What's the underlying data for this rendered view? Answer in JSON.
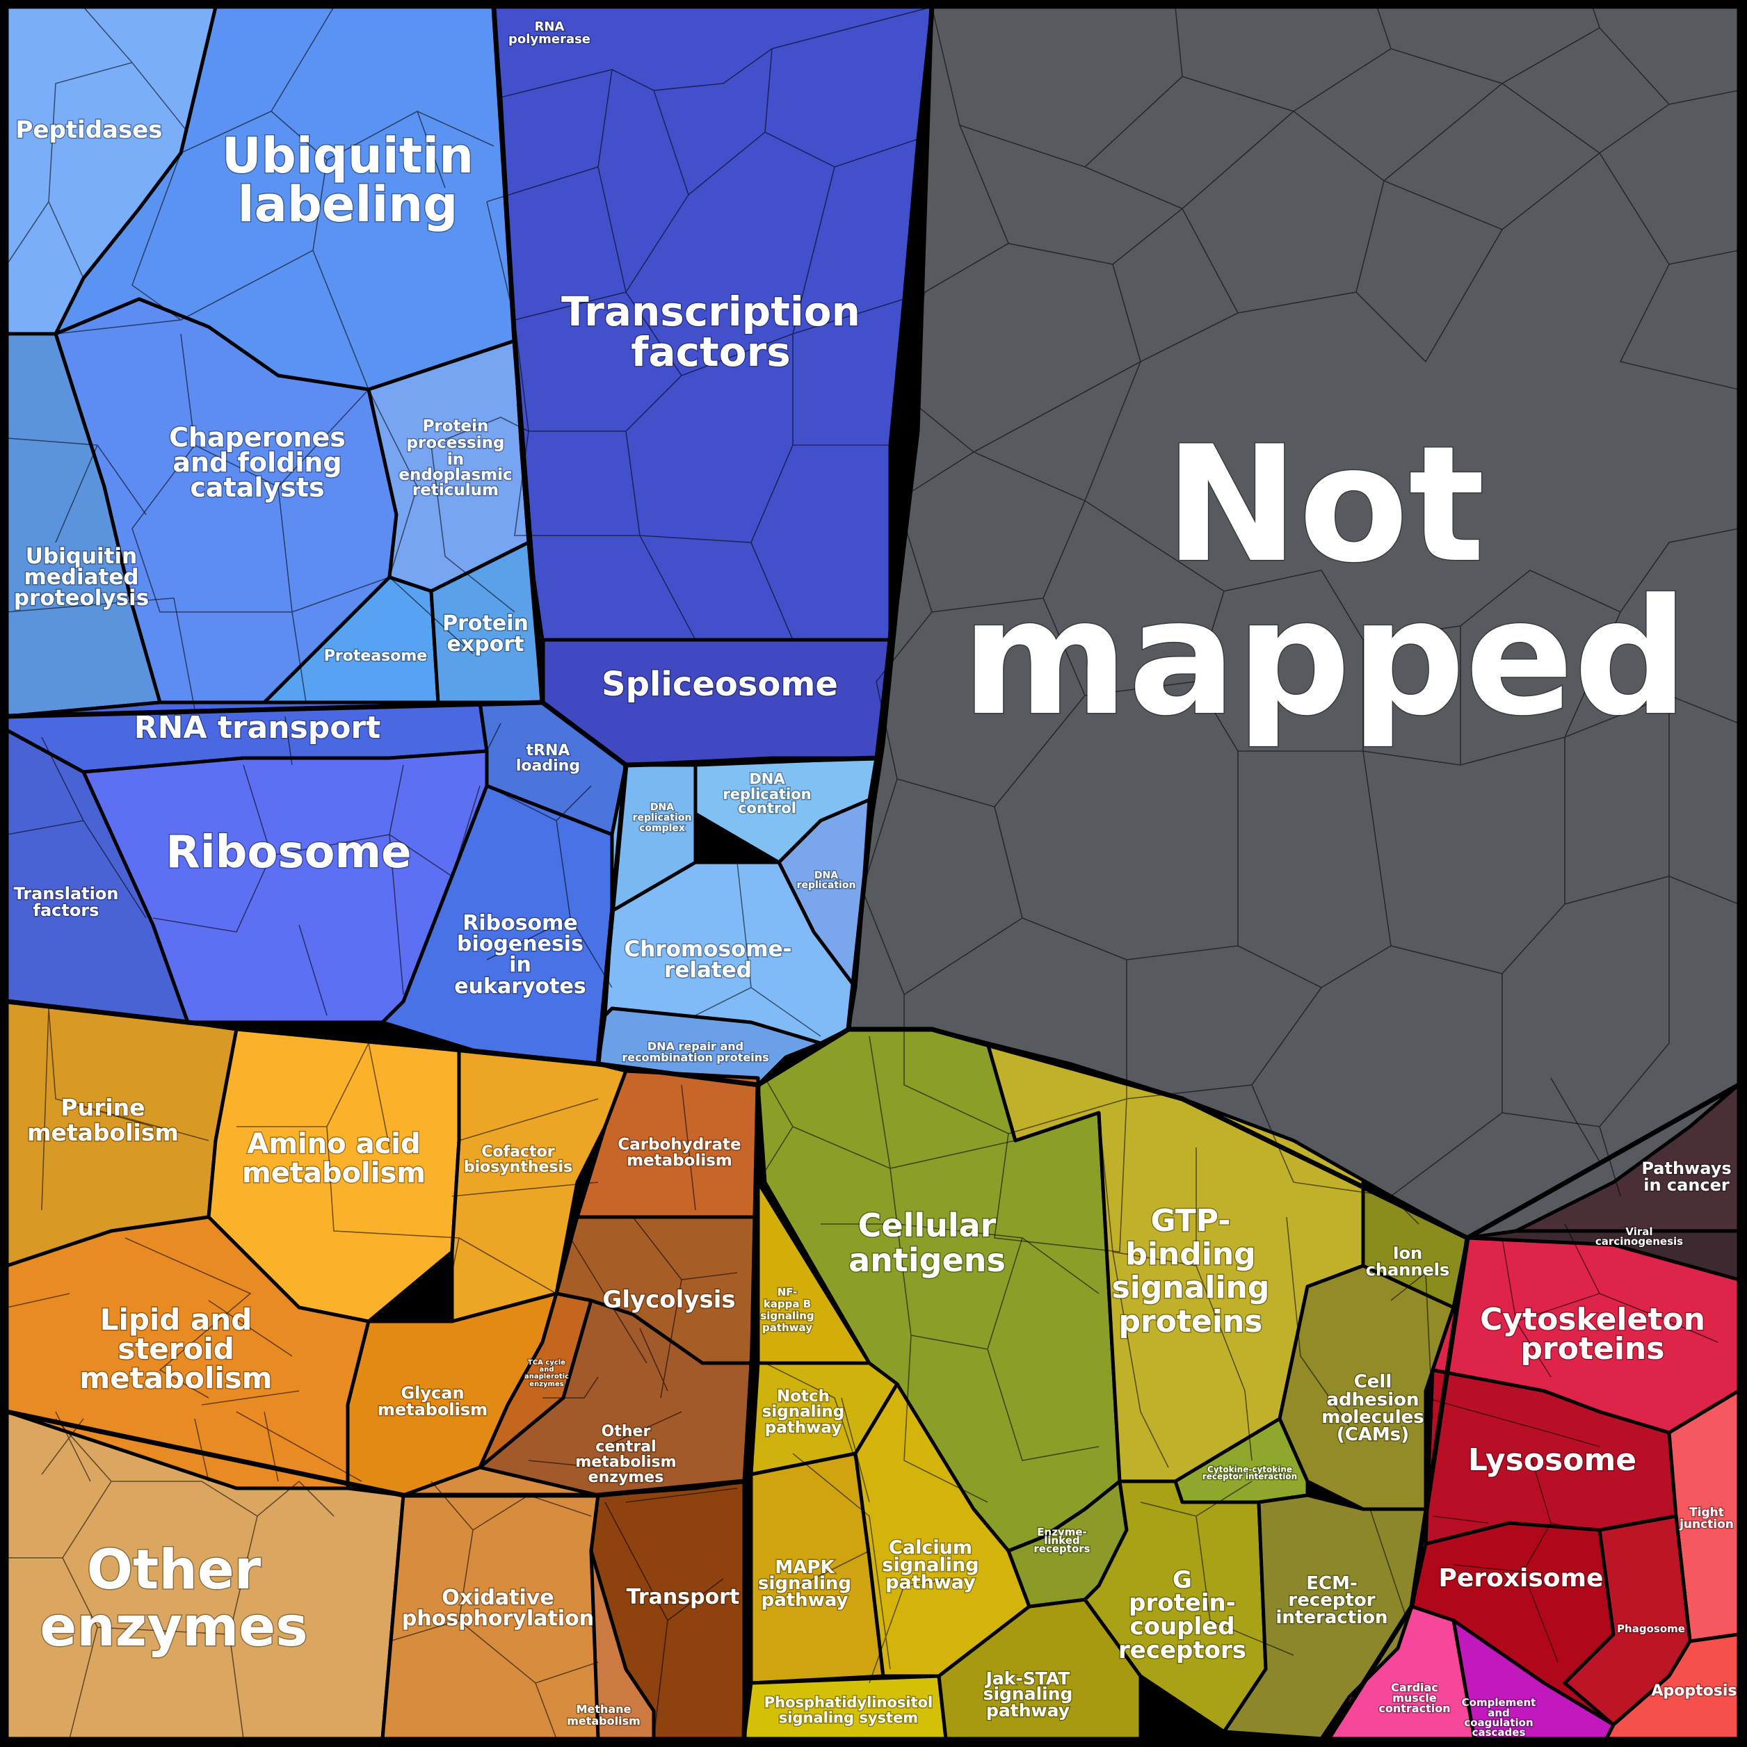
{
  "regions": [
    {
      "name": "not-mapped",
      "label": [
        "Not",
        "mapped"
      ],
      "color": "#575b60"
    },
    {
      "name": "ubiquitin-labeling",
      "label": [
        "Ubiquitin",
        "labeling"
      ],
      "color": "#5b93f2"
    },
    {
      "name": "peptidases",
      "label": [
        "Peptidases"
      ],
      "color": "#7aaef8"
    },
    {
      "name": "chaperones",
      "label": [
        "Chaperones",
        "and folding",
        "catalysts"
      ],
      "color": "#5d8df2"
    },
    {
      "name": "protein-processing-er",
      "label": [
        "Protein",
        "processing",
        "in",
        "endoplasmic",
        "reticulum"
      ],
      "color": "#78a5f1"
    },
    {
      "name": "ubiquitin-mediated-proteolysis",
      "label": [
        "Ubiquitin",
        "mediated",
        "proteolysis"
      ],
      "color": "#5b94dc"
    },
    {
      "name": "proteasome",
      "label": [
        "Proteasome"
      ],
      "color": "#58a2f2"
    },
    {
      "name": "protein-export",
      "label": [
        "Protein",
        "export"
      ],
      "color": "#5aa1ea"
    },
    {
      "name": "rna-polymerase",
      "label": [
        "RNA",
        "polymerase"
      ],
      "color": "#4a4dc8"
    },
    {
      "name": "transcription-factors",
      "label": [
        "Transcription",
        "factors"
      ],
      "color": "#4250cc"
    },
    {
      "name": "spliceosome",
      "label": [
        "Spliceosome"
      ],
      "color": "#4149c2"
    },
    {
      "name": "rna-transport",
      "label": [
        "RNA transport"
      ],
      "color": "#4a68e2"
    },
    {
      "name": "trna-loading",
      "label": [
        "tRNA",
        "loading"
      ],
      "color": "#4b75dc"
    },
    {
      "name": "ribosome",
      "label": [
        "Ribosome"
      ],
      "color": "#5d6ff2"
    },
    {
      "name": "translation-factors",
      "label": [
        "Translation",
        "factors"
      ],
      "color": "#4a63d4"
    },
    {
      "name": "ribosome-biogenesis",
      "label": [
        "Ribosome",
        "biogenesis",
        "in",
        "eukaryotes"
      ],
      "color": "#4872e6"
    },
    {
      "name": "dna-replication-complex",
      "label": [
        "DNA",
        "replication",
        "complex"
      ],
      "color": "#7ab8f2"
    },
    {
      "name": "dna-replication-control",
      "label": [
        "DNA",
        "replication",
        "control"
      ],
      "color": "#80c0f2"
    },
    {
      "name": "dna-replication",
      "label": [
        "DNA",
        "replication"
      ],
      "color": "#7aa6ec"
    },
    {
      "name": "chromosome-related",
      "label": [
        "Chromosome-",
        "related"
      ],
      "color": "#80bbf8"
    },
    {
      "name": "dna-repair",
      "label": [
        "DNA repair and",
        "recombination proteins"
      ],
      "color": "#6aa0e8"
    },
    {
      "name": "purine-metabolism",
      "label": [
        "Purine",
        "metabolism"
      ],
      "color": "#d99a25"
    },
    {
      "name": "amino-acid-metabolism",
      "label": [
        "Amino acid",
        "metabolism"
      ],
      "color": "#fbb12a"
    },
    {
      "name": "cofactor-biosynthesis",
      "label": [
        "Cofactor",
        "biosynthesis"
      ],
      "color": "#eca525"
    },
    {
      "name": "lipid-steroid-metabolism",
      "label": [
        "Lipid and",
        "steroid",
        "metabolism"
      ],
      "color": "#e88b22"
    },
    {
      "name": "glycan-metabolism",
      "label": [
        "Glycan",
        "metabolism"
      ],
      "color": "#e38a14"
    },
    {
      "name": "carbohydrate-metabolism",
      "label": [
        "Carbohydrate",
        "metabolism"
      ],
      "color": "#c8662a"
    },
    {
      "name": "glycolysis",
      "label": [
        "Glycolysis"
      ],
      "color": "#a75d26"
    },
    {
      "name": "tca-cycle",
      "label": [
        "TCA cycle",
        "and",
        "anaplerotic",
        "enzymes"
      ],
      "color": "#c5661f"
    },
    {
      "name": "other-central-metabolism",
      "label": [
        "Other",
        "central",
        "metabolism",
        "enzymes"
      ],
      "color": "#a35a2a"
    },
    {
      "name": "other-enzymes",
      "label": [
        "Other",
        "enzymes"
      ],
      "color": "#dba660"
    },
    {
      "name": "oxidative-phosphorylation",
      "label": [
        "Oxidative",
        "phosphorylation"
      ],
      "color": "#d88c3d"
    },
    {
      "name": "methane-metabolism",
      "label": [
        "Methane",
        "metabolism"
      ],
      "color": "#cc7a42"
    },
    {
      "name": "transport",
      "label": [
        "Transport"
      ],
      "color": "#8e420e"
    },
    {
      "name": "cellular-antigens",
      "label": [
        "Cellular",
        "antigens"
      ],
      "color": "#8a9e28"
    },
    {
      "name": "nf-kappa-b",
      "label": [
        "NF-",
        "kappa B",
        "signaling",
        "pathway"
      ],
      "color": "#d3ad08"
    },
    {
      "name": "notch-signaling",
      "label": [
        "Notch",
        "signaling",
        "pathway"
      ],
      "color": "#d0b20c"
    },
    {
      "name": "mapk-signaling",
      "label": [
        "MAPK",
        "signaling",
        "pathway"
      ],
      "color": "#cfa410"
    },
    {
      "name": "calcium-signaling",
      "label": [
        "Calcium",
        "signaling",
        "pathway"
      ],
      "color": "#d4b30a"
    },
    {
      "name": "phosphatidylinositol",
      "label": [
        "Phosphatidylinositol",
        "signaling system"
      ],
      "color": "#d5c008"
    },
    {
      "name": "jak-stat",
      "label": [
        "Jak-STAT",
        "signaling",
        "pathway"
      ],
      "color": "#a79a10"
    },
    {
      "name": "enzyme-linked-receptors",
      "label": [
        "Enzyme-",
        "linked",
        "receptors"
      ],
      "color": "#8c9a28"
    },
    {
      "name": "gtp-binding",
      "label": [
        "GTP-",
        "binding",
        "signaling",
        "proteins"
      ],
      "color": "#c0b02a"
    },
    {
      "name": "ion-channels",
      "label": [
        "Ion",
        "channels"
      ],
      "color": "#8a8c1c"
    },
    {
      "name": "cell-adhesion-molecules",
      "label": [
        "Cell",
        "adhesion",
        "molecules",
        "(CAMs)"
      ],
      "color": "#938a28"
    },
    {
      "name": "cytokine-receptor",
      "label": [
        "Cytokine-cytokine",
        "receptor interaction"
      ],
      "color": "#8ea82c"
    },
    {
      "name": "g-protein-coupled",
      "label": [
        "G",
        "protein-",
        "coupled",
        "receptors"
      ],
      "color": "#aaa216"
    },
    {
      "name": "ecm-receptor",
      "label": [
        "ECM-",
        "receptor",
        "interaction"
      ],
      "color": "#8b872a"
    },
    {
      "name": "pathways-in-cancer",
      "label": [
        "Pathways",
        "in cancer"
      ],
      "color": "#4a3036"
    },
    {
      "name": "viral-carcinogenesis",
      "label": [
        "Viral",
        "carcinogenesis"
      ],
      "color": "#3c2a30"
    },
    {
      "name": "cytoskeleton-proteins",
      "label": [
        "Cytoskeleton",
        "proteins"
      ],
      "color": "#de2448"
    },
    {
      "name": "lysosome",
      "label": [
        "Lysosome"
      ],
      "color": "#b80f26"
    },
    {
      "name": "tight-junction",
      "label": [
        "Tight",
        "junction"
      ],
      "color": "#f5585e"
    },
    {
      "name": "peroxisome",
      "label": [
        "Peroxisome"
      ],
      "color": "#b0081a"
    },
    {
      "name": "phagosome",
      "label": [
        "Phagosome"
      ],
      "color": "#bc1525"
    },
    {
      "name": "cardiac-muscle-contraction",
      "label": [
        "Cardiac",
        "muscle",
        "contraction"
      ],
      "color": "#f6479a"
    },
    {
      "name": "complement-coagulation",
      "label": [
        "Complement",
        "and",
        "coagulation",
        "cascades"
      ],
      "color": "#c119bd"
    },
    {
      "name": "apoptosis",
      "label": [
        "Apoptosis"
      ],
      "color": "#f5504c"
    }
  ]
}
